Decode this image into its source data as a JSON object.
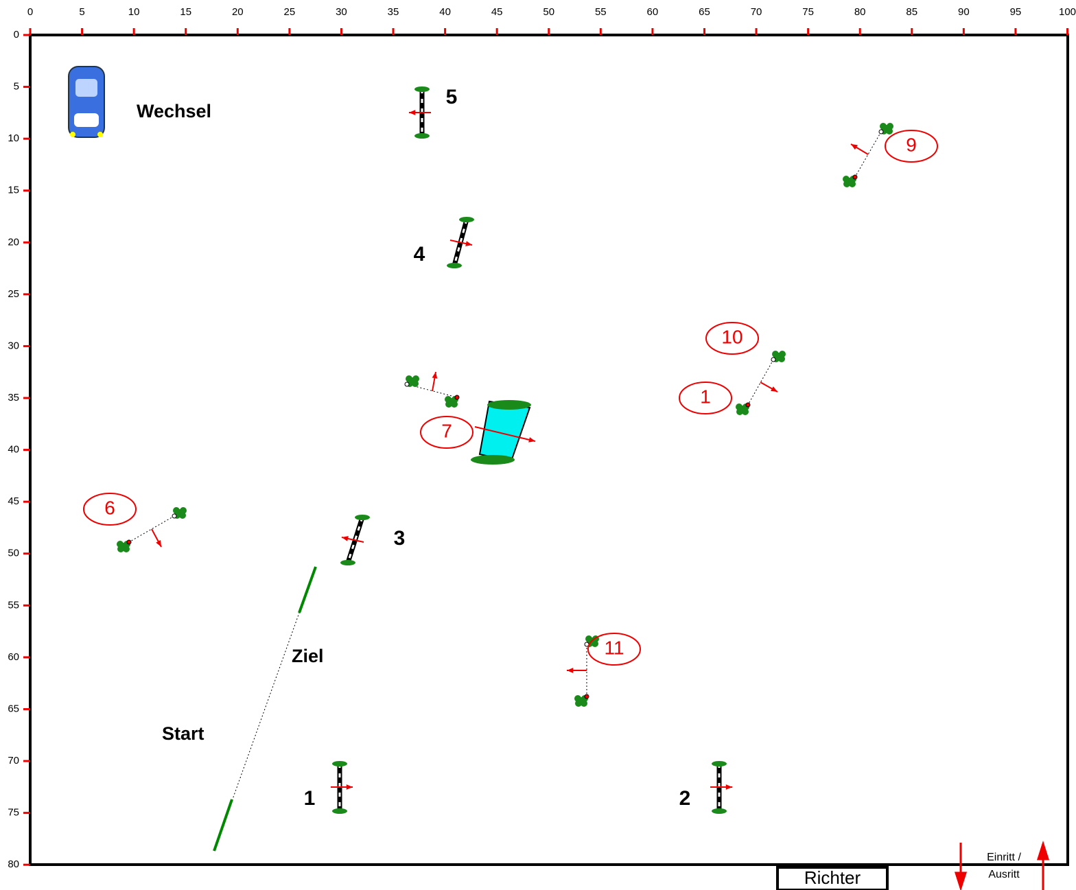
{
  "ruler": {
    "x_ticks": [
      0,
      5,
      10,
      15,
      20,
      25,
      30,
      35,
      40,
      45,
      50,
      55,
      60,
      65,
      70,
      75,
      80,
      85,
      90,
      95,
      100
    ],
    "y_ticks": [
      0,
      5,
      10,
      15,
      20,
      25,
      30,
      35,
      40,
      45,
      50,
      55,
      60,
      65,
      70,
      75,
      80
    ]
  },
  "labels": {
    "wechsel": "Wechsel",
    "ziel": "Ziel",
    "start": "Start"
  },
  "obstacles": [
    {
      "number": "1"
    },
    {
      "number": "2"
    },
    {
      "number": "3"
    },
    {
      "number": "4"
    },
    {
      "number": "5"
    },
    {
      "number": "6"
    },
    {
      "number": "7"
    },
    {
      "number": "1"
    },
    {
      "number": "9"
    },
    {
      "number": "10"
    },
    {
      "number": "11"
    }
  ],
  "judge": "Richter",
  "entrance": [
    "Einritt /",
    "Ausritt"
  ]
}
